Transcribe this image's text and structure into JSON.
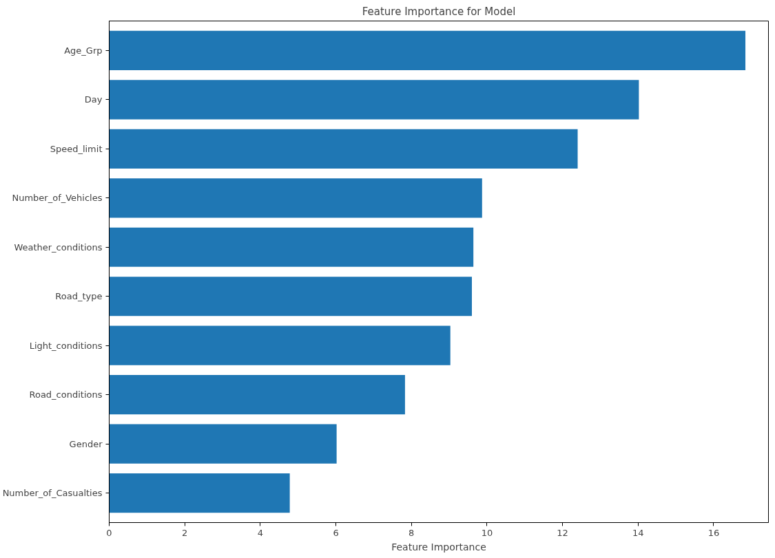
{
  "chart_data": {
    "type": "bar",
    "orientation": "horizontal",
    "title": "Feature Importance for Model",
    "xlabel": "Feature Importance",
    "categories": [
      "Age_Grp",
      "Day",
      "Speed_limit",
      "Number_of_Vehicles",
      "Weather_conditions",
      "Road_type",
      "Light_conditions",
      "Road_conditions",
      "Gender",
      "Number_of_Casualties"
    ],
    "values": [
      16.84,
      14.02,
      12.4,
      9.87,
      9.64,
      9.6,
      9.03,
      7.83,
      6.02,
      4.78
    ],
    "color": "#1f77b4",
    "xlim": [
      0,
      17.45
    ],
    "xticks": [
      0,
      2,
      4,
      6,
      8,
      10,
      12,
      14,
      16
    ],
    "grid": false
  }
}
